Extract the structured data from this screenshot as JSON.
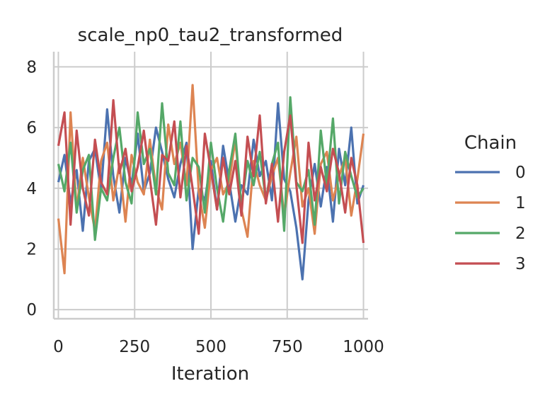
{
  "chart_data": {
    "type": "line",
    "title": "scale_np0_tau2_transformed",
    "xlabel": "Iteration",
    "ylabel": "",
    "xlim": [
      -15,
      1015
    ],
    "ylim": [
      -0.3,
      8.5
    ],
    "xticks": [
      0,
      250,
      500,
      750,
      1000
    ],
    "xtick_labels": [
      "0",
      "250",
      "500",
      "750",
      "1000"
    ],
    "yticks": [
      0,
      2,
      4,
      6,
      8
    ],
    "ytick_labels": [
      "0",
      "2",
      "4",
      "6",
      "8"
    ],
    "grid": true,
    "legend": {
      "title": "Chain",
      "placement": "right"
    },
    "x": [
      0,
      20,
      40,
      60,
      80,
      100,
      120,
      140,
      160,
      180,
      200,
      220,
      240,
      260,
      280,
      300,
      320,
      340,
      360,
      380,
      400,
      420,
      440,
      460,
      480,
      500,
      520,
      540,
      560,
      580,
      600,
      620,
      640,
      660,
      680,
      700,
      720,
      740,
      760,
      780,
      800,
      820,
      840,
      860,
      880,
      900,
      920,
      940,
      960,
      980,
      1000
    ],
    "series": [
      {
        "name": "0",
        "color": "#4c72b0",
        "values": [
          4.2,
          5.1,
          3.5,
          4.6,
          2.6,
          4.9,
          5.3,
          3.9,
          6.6,
          4.4,
          3.2,
          5.0,
          4.1,
          5.8,
          3.9,
          4.5,
          6.0,
          5.2,
          4.3,
          3.7,
          4.8,
          5.5,
          2.0,
          4.0,
          3.6,
          4.9,
          3.3,
          5.4,
          4.2,
          2.9,
          4.1,
          3.8,
          5.6,
          4.4,
          4.9,
          3.6,
          6.8,
          4.3,
          3.9,
          2.7,
          1.0,
          3.6,
          4.8,
          3.4,
          4.7,
          2.9,
          5.3,
          4.1,
          6.0,
          3.5,
          4.1
        ]
      },
      {
        "name": "1",
        "color": "#dd8452",
        "values": [
          3.0,
          1.2,
          6.5,
          3.3,
          5.0,
          3.7,
          2.6,
          4.9,
          5.5,
          3.6,
          4.8,
          2.9,
          5.1,
          4.2,
          3.8,
          5.6,
          4.0,
          3.3,
          6.1,
          4.8,
          5.5,
          4.1,
          7.4,
          3.9,
          2.7,
          4.6,
          5.0,
          3.8,
          4.2,
          5.6,
          3.3,
          2.4,
          4.9,
          4.1,
          3.6,
          4.4,
          5.0,
          3.1,
          4.5,
          5.7,
          3.4,
          4.0,
          2.5,
          4.8,
          5.2,
          3.6,
          4.4,
          5.0,
          3.1,
          4.3,
          5.8
        ]
      },
      {
        "name": "2",
        "color": "#55a868",
        "values": [
          4.8,
          3.9,
          5.5,
          3.2,
          4.6,
          5.1,
          2.3,
          4.0,
          3.6,
          5.0,
          6.0,
          4.2,
          3.5,
          6.5,
          4.8,
          5.3,
          3.8,
          6.8,
          4.5,
          4.1,
          6.2,
          3.6,
          5.0,
          4.7,
          3.2,
          5.5,
          4.0,
          2.9,
          4.6,
          5.8,
          3.4,
          4.9,
          4.1,
          5.2,
          3.6,
          4.8,
          5.5,
          2.6,
          7.0,
          4.2,
          3.9,
          4.6,
          2.8,
          5.9,
          4.1,
          6.3,
          3.5,
          5.2,
          4.4,
          3.7,
          4.0
        ]
      },
      {
        "name": "3",
        "color": "#c44e52",
        "values": [
          5.4,
          6.5,
          2.8,
          5.9,
          4.0,
          3.1,
          5.6,
          4.2,
          3.8,
          6.9,
          4.5,
          5.3,
          3.9,
          4.7,
          5.9,
          4.3,
          2.8,
          5.1,
          4.9,
          6.2,
          3.7,
          5.4,
          4.0,
          2.5,
          5.8,
          4.6,
          3.3,
          5.0,
          3.8,
          4.9,
          3.1,
          5.7,
          4.4,
          6.4,
          3.5,
          4.8,
          2.9,
          5.2,
          6.4,
          4.1,
          2.2,
          5.5,
          3.6,
          4.7,
          3.9,
          5.3,
          4.5,
          3.2,
          5.0,
          4.1,
          2.2
        ]
      }
    ]
  }
}
